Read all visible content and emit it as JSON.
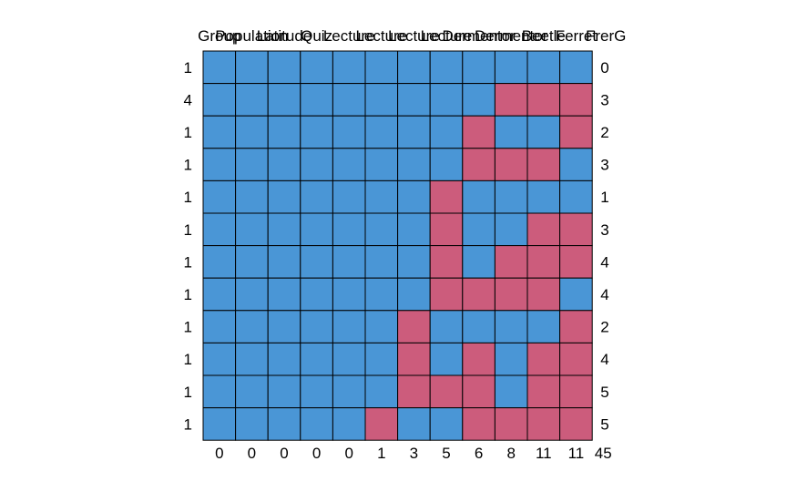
{
  "chart_data": {
    "type": "heatmap",
    "title": "",
    "columns": [
      "Group",
      "Population",
      "Latitude",
      "Quiz",
      "Lecture",
      "Lecture",
      "Lecture",
      "Lecture",
      "Dermentor",
      "Dermentor",
      "Beetle",
      "Ferret",
      "FrerG"
    ],
    "rows": [
      {
        "count": 1,
        "cells": [
          0,
          0,
          0,
          0,
          0,
          0,
          0,
          0,
          0,
          0,
          0,
          0
        ],
        "missing": 0
      },
      {
        "count": 4,
        "cells": [
          0,
          0,
          0,
          0,
          0,
          0,
          0,
          0,
          0,
          1,
          1,
          1
        ],
        "missing": 3
      },
      {
        "count": 1,
        "cells": [
          0,
          0,
          0,
          0,
          0,
          0,
          0,
          0,
          1,
          0,
          0,
          1
        ],
        "missing": 2
      },
      {
        "count": 1,
        "cells": [
          0,
          0,
          0,
          0,
          0,
          0,
          0,
          0,
          1,
          1,
          1,
          0
        ],
        "missing": 3
      },
      {
        "count": 1,
        "cells": [
          0,
          0,
          0,
          0,
          0,
          0,
          0,
          1,
          0,
          0,
          0,
          0
        ],
        "missing": 1
      },
      {
        "count": 1,
        "cells": [
          0,
          0,
          0,
          0,
          0,
          0,
          0,
          1,
          0,
          0,
          1,
          1
        ],
        "missing": 3
      },
      {
        "count": 1,
        "cells": [
          0,
          0,
          0,
          0,
          0,
          0,
          0,
          1,
          0,
          1,
          1,
          1
        ],
        "missing": 4
      },
      {
        "count": 1,
        "cells": [
          0,
          0,
          0,
          0,
          0,
          0,
          0,
          1,
          1,
          1,
          1,
          0
        ],
        "missing": 4
      },
      {
        "count": 1,
        "cells": [
          0,
          0,
          0,
          0,
          0,
          0,
          1,
          0,
          0,
          0,
          0,
          1
        ],
        "missing": 2
      },
      {
        "count": 1,
        "cells": [
          0,
          0,
          0,
          0,
          0,
          0,
          1,
          0,
          1,
          0,
          1,
          1
        ],
        "missing": 4
      },
      {
        "count": 1,
        "cells": [
          0,
          0,
          0,
          0,
          0,
          0,
          1,
          1,
          1,
          0,
          1,
          1
        ],
        "missing": 5
      },
      {
        "count": 1,
        "cells": [
          0,
          0,
          0,
          0,
          0,
          1,
          0,
          0,
          1,
          1,
          1,
          1
        ],
        "missing": 5
      }
    ],
    "column_missing_totals": [
      0,
      0,
      0,
      0,
      0,
      1,
      3,
      5,
      6,
      8,
      11,
      11
    ],
    "grand_total": 45,
    "colors": {
      "observed": "#4a96d6",
      "missing": "#cc5c7c",
      "grid": "#000000"
    }
  }
}
